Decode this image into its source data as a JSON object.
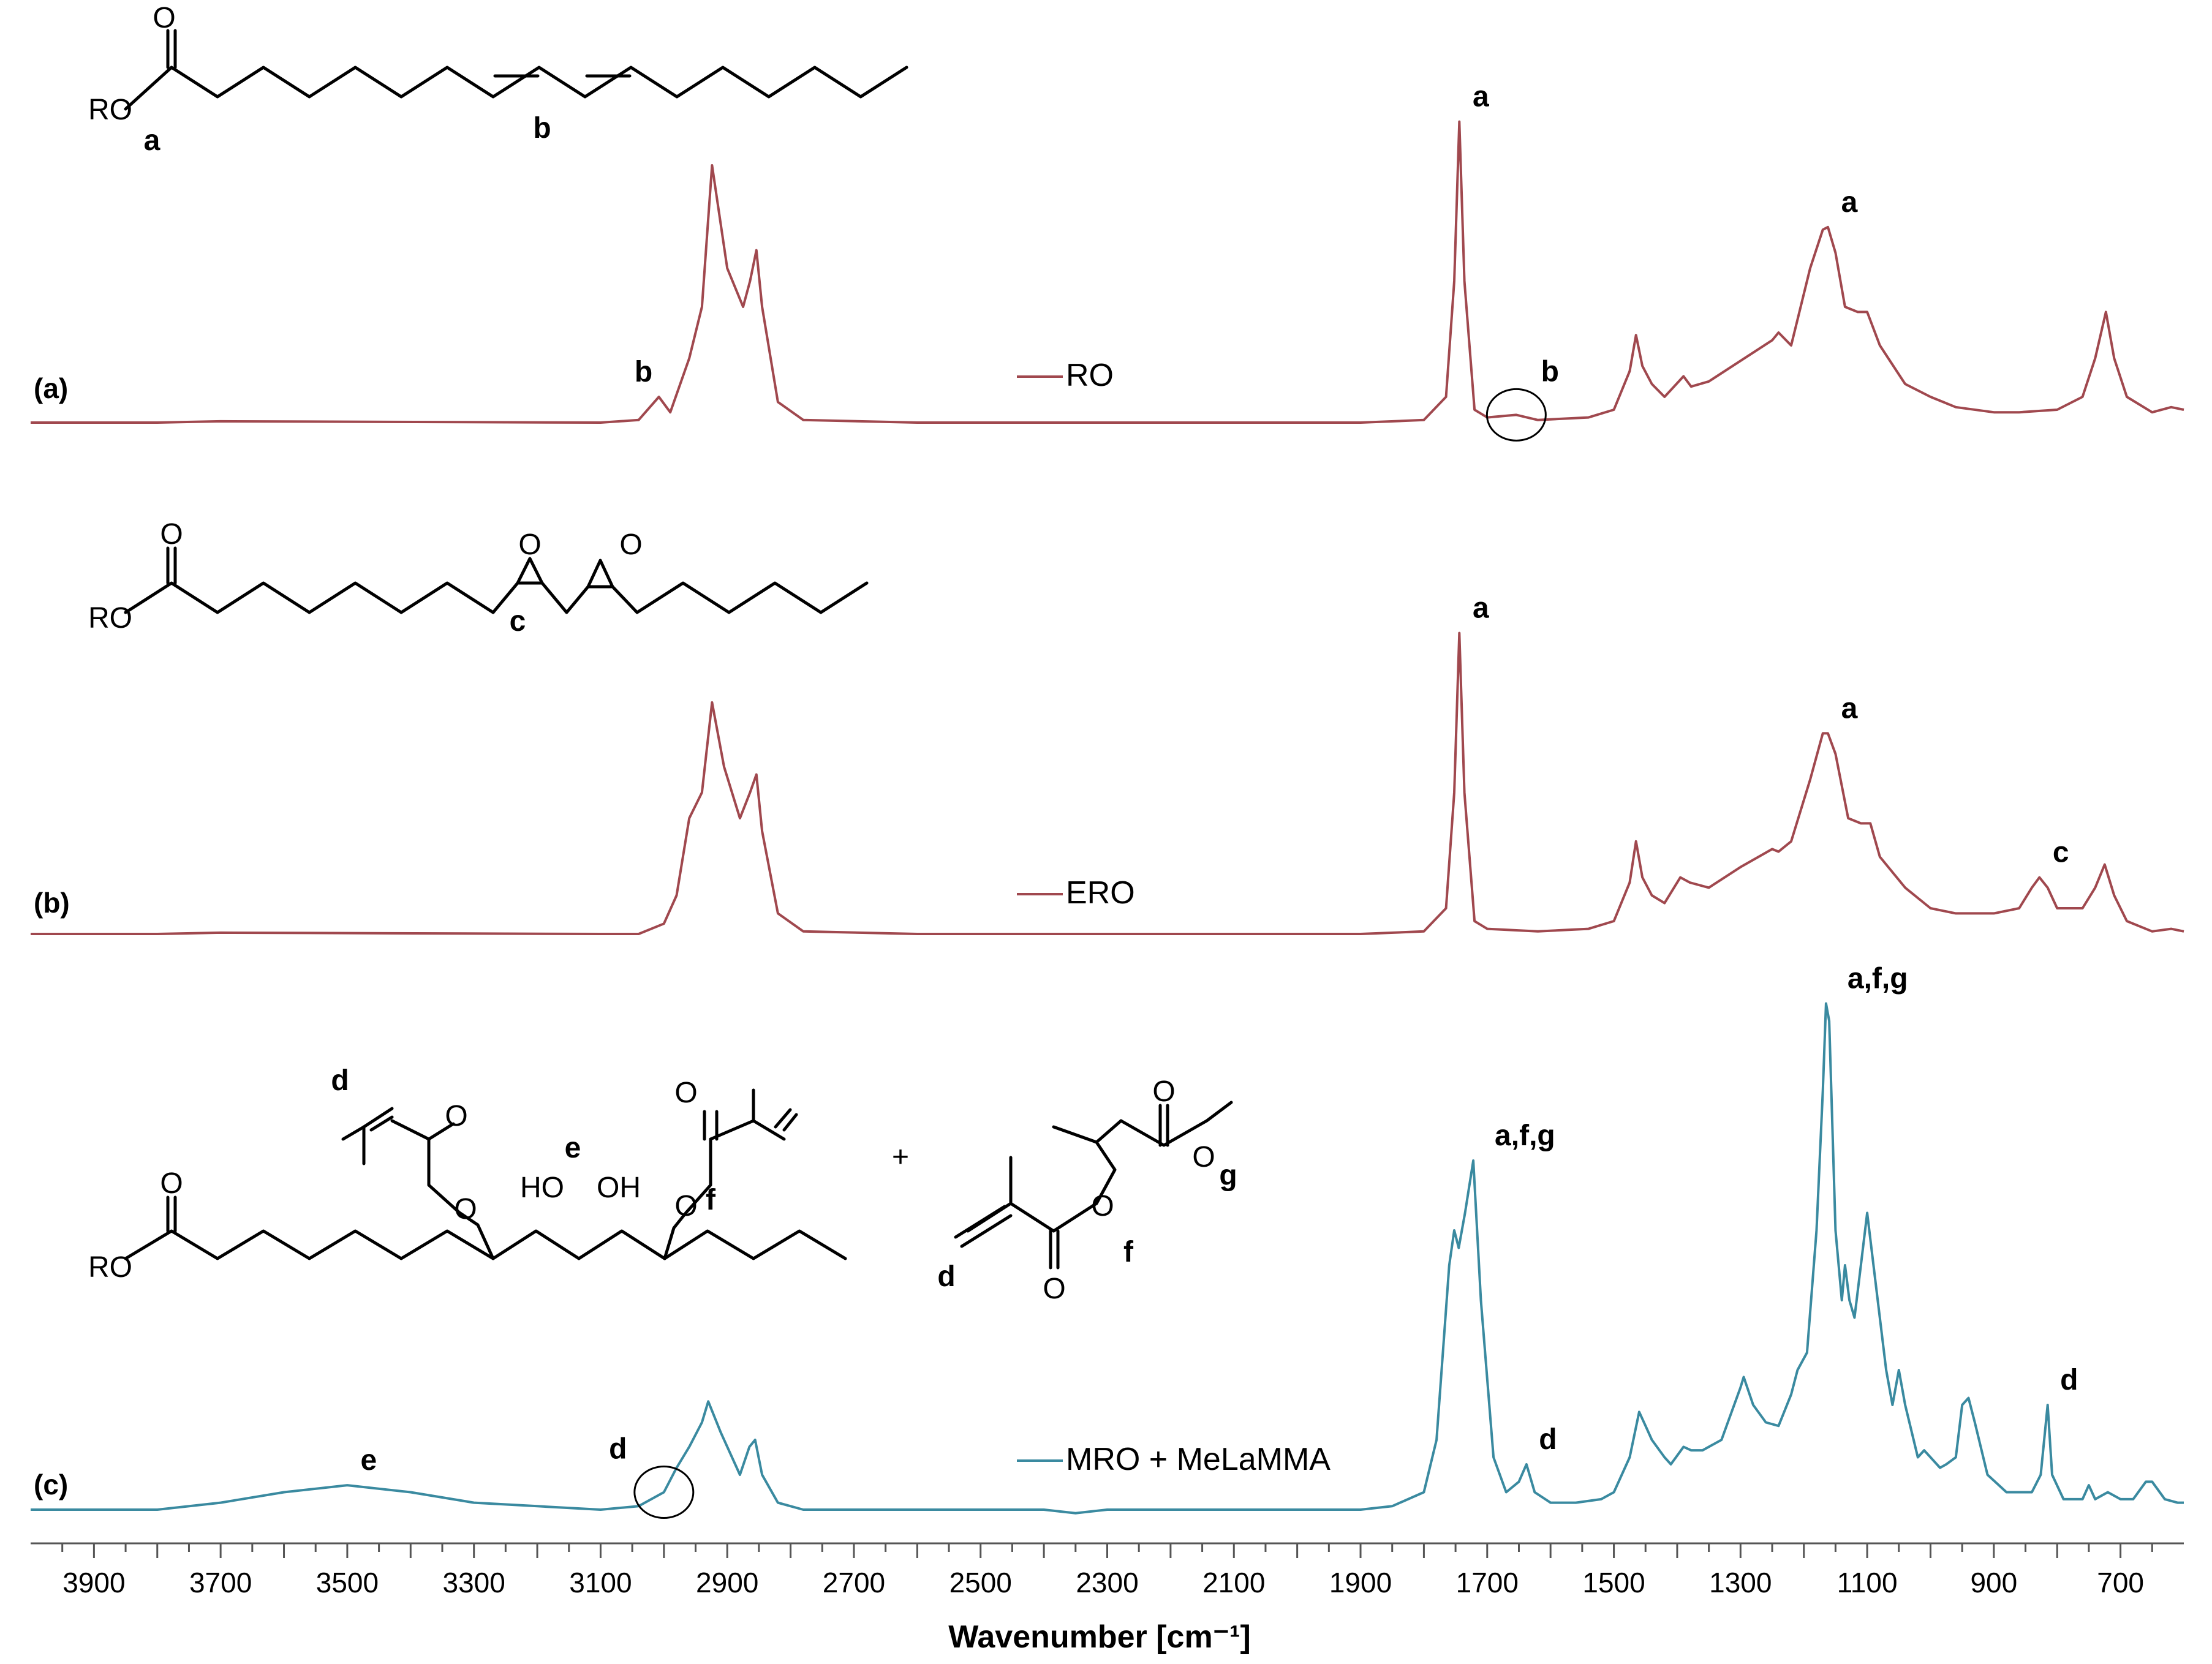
{
  "chart_data": {
    "type": "line",
    "title": "",
    "xlabel": "Wavenumber [cm⁻¹]",
    "ylabel": "",
    "xlim": [
      4000,
      600
    ],
    "x_reversed": true,
    "x_ticks": [
      3900,
      3700,
      3500,
      3300,
      3100,
      2900,
      2700,
      2500,
      2300,
      2100,
      1900,
      1700,
      1500,
      1300,
      1100,
      900,
      700
    ],
    "grid": false,
    "legend": "inline",
    "series": [
      {
        "name": "RO",
        "panel": "(a)",
        "color": "#a0484e",
        "points": [
          [
            4000,
            0.0
          ],
          [
            3800,
            0.0
          ],
          [
            3700,
            0.005
          ],
          [
            3100,
            0.0
          ],
          [
            3040,
            0.01
          ],
          [
            3008,
            0.1
          ],
          [
            2990,
            0.04
          ],
          [
            2960,
            0.25
          ],
          [
            2940,
            0.45
          ],
          [
            2924,
            1.0
          ],
          [
            2900,
            0.6
          ],
          [
            2875,
            0.45
          ],
          [
            2864,
            0.55
          ],
          [
            2854,
            0.67
          ],
          [
            2845,
            0.45
          ],
          [
            2820,
            0.08
          ],
          [
            2780,
            0.01
          ],
          [
            2600,
            0.0
          ],
          [
            1900,
            0.0
          ],
          [
            1800,
            0.01
          ],
          [
            1765,
            0.1
          ],
          [
            1752,
            0.55
          ],
          [
            1744,
            1.17
          ],
          [
            1736,
            0.55
          ],
          [
            1720,
            0.05
          ],
          [
            1700,
            0.02
          ],
          [
            1654,
            0.03
          ],
          [
            1620,
            0.01
          ],
          [
            1540,
            0.02
          ],
          [
            1500,
            0.05
          ],
          [
            1475,
            0.2
          ],
          [
            1465,
            0.34
          ],
          [
            1455,
            0.22
          ],
          [
            1440,
            0.15
          ],
          [
            1420,
            0.1
          ],
          [
            1390,
            0.18
          ],
          [
            1378,
            0.14
          ],
          [
            1350,
            0.16
          ],
          [
            1300,
            0.24
          ],
          [
            1250,
            0.32
          ],
          [
            1240,
            0.35
          ],
          [
            1220,
            0.3
          ],
          [
            1190,
            0.6
          ],
          [
            1170,
            0.75
          ],
          [
            1162,
            0.76
          ],
          [
            1150,
            0.66
          ],
          [
            1135,
            0.45
          ],
          [
            1115,
            0.43
          ],
          [
            1100,
            0.43
          ],
          [
            1080,
            0.3
          ],
          [
            1040,
            0.15
          ],
          [
            1000,
            0.1
          ],
          [
            960,
            0.06
          ],
          [
            900,
            0.04
          ],
          [
            860,
            0.04
          ],
          [
            800,
            0.05
          ],
          [
            760,
            0.1
          ],
          [
            740,
            0.25
          ],
          [
            723,
            0.43
          ],
          [
            710,
            0.25
          ],
          [
            690,
            0.1
          ],
          [
            650,
            0.04
          ],
          [
            620,
            0.06
          ],
          [
            600,
            0.05
          ]
        ]
      },
      {
        "name": "ERO",
        "panel": "(b)",
        "color": "#a0484e",
        "points": [
          [
            4000,
            0.0
          ],
          [
            3800,
            0.0
          ],
          [
            3700,
            0.005
          ],
          [
            3100,
            0.0
          ],
          [
            3040,
            0.0
          ],
          [
            3000,
            0.04
          ],
          [
            2980,
            0.15
          ],
          [
            2960,
            0.45
          ],
          [
            2940,
            0.55
          ],
          [
            2924,
            0.9
          ],
          [
            2905,
            0.65
          ],
          [
            2880,
            0.45
          ],
          [
            2864,
            0.55
          ],
          [
            2854,
            0.62
          ],
          [
            2845,
            0.4
          ],
          [
            2820,
            0.08
          ],
          [
            2780,
            0.01
          ],
          [
            2600,
            0.0
          ],
          [
            1900,
            0.0
          ],
          [
            1800,
            0.01
          ],
          [
            1765,
            0.1
          ],
          [
            1752,
            0.55
          ],
          [
            1744,
            1.17
          ],
          [
            1736,
            0.55
          ],
          [
            1720,
            0.05
          ],
          [
            1700,
            0.02
          ],
          [
            1620,
            0.01
          ],
          [
            1540,
            0.02
          ],
          [
            1500,
            0.05
          ],
          [
            1475,
            0.2
          ],
          [
            1465,
            0.36
          ],
          [
            1455,
            0.22
          ],
          [
            1440,
            0.15
          ],
          [
            1420,
            0.12
          ],
          [
            1395,
            0.22
          ],
          [
            1380,
            0.2
          ],
          [
            1350,
            0.18
          ],
          [
            1300,
            0.26
          ],
          [
            1250,
            0.33
          ],
          [
            1240,
            0.32
          ],
          [
            1220,
            0.36
          ],
          [
            1190,
            0.6
          ],
          [
            1170,
            0.78
          ],
          [
            1162,
            0.78
          ],
          [
            1150,
            0.7
          ],
          [
            1130,
            0.45
          ],
          [
            1110,
            0.43
          ],
          [
            1095,
            0.43
          ],
          [
            1080,
            0.3
          ],
          [
            1040,
            0.18
          ],
          [
            1000,
            0.1
          ],
          [
            960,
            0.08
          ],
          [
            900,
            0.08
          ],
          [
            860,
            0.1
          ],
          [
            840,
            0.18
          ],
          [
            828,
            0.22
          ],
          [
            815,
            0.18
          ],
          [
            800,
            0.1
          ],
          [
            760,
            0.1
          ],
          [
            740,
            0.18
          ],
          [
            725,
            0.27
          ],
          [
            710,
            0.15
          ],
          [
            690,
            0.05
          ],
          [
            650,
            0.01
          ],
          [
            620,
            0.02
          ],
          [
            600,
            0.01
          ]
        ]
      },
      {
        "name": "MRO + MeLaMMA",
        "panel": "(c)",
        "color": "#3a8aa0",
        "points": [
          [
            4000,
            0.0
          ],
          [
            3800,
            0.0
          ],
          [
            3700,
            0.02
          ],
          [
            3600,
            0.05
          ],
          [
            3500,
            0.07
          ],
          [
            3400,
            0.05
          ],
          [
            3300,
            0.02
          ],
          [
            3200,
            0.01
          ],
          [
            3100,
            0.0
          ],
          [
            3040,
            0.01
          ],
          [
            3000,
            0.05
          ],
          [
            2980,
            0.12
          ],
          [
            2960,
            0.18
          ],
          [
            2940,
            0.25
          ],
          [
            2930,
            0.31
          ],
          [
            2910,
            0.22
          ],
          [
            2880,
            0.1
          ],
          [
            2865,
            0.18
          ],
          [
            2856,
            0.2
          ],
          [
            2845,
            0.1
          ],
          [
            2820,
            0.02
          ],
          [
            2780,
            0.0
          ],
          [
            2400,
            0.0
          ],
          [
            2350,
            -0.01
          ],
          [
            2300,
            0.0
          ],
          [
            1900,
            0.0
          ],
          [
            1850,
            0.01
          ],
          [
            1800,
            0.05
          ],
          [
            1780,
            0.2
          ],
          [
            1760,
            0.7
          ],
          [
            1752,
            0.8
          ],
          [
            1745,
            0.75
          ],
          [
            1735,
            0.85
          ],
          [
            1722,
            1.0
          ],
          [
            1710,
            0.6
          ],
          [
            1690,
            0.15
          ],
          [
            1670,
            0.05
          ],
          [
            1650,
            0.08
          ],
          [
            1638,
            0.13
          ],
          [
            1625,
            0.05
          ],
          [
            1600,
            0.02
          ],
          [
            1560,
            0.02
          ],
          [
            1520,
            0.03
          ],
          [
            1500,
            0.05
          ],
          [
            1475,
            0.15
          ],
          [
            1460,
            0.28
          ],
          [
            1450,
            0.24
          ],
          [
            1440,
            0.2
          ],
          [
            1420,
            0.15
          ],
          [
            1410,
            0.13
          ],
          [
            1390,
            0.18
          ],
          [
            1378,
            0.17
          ],
          [
            1360,
            0.17
          ],
          [
            1330,
            0.2
          ],
          [
            1320,
            0.25
          ],
          [
            1300,
            0.35
          ],
          [
            1295,
            0.38
          ],
          [
            1280,
            0.3
          ],
          [
            1260,
            0.25
          ],
          [
            1240,
            0.24
          ],
          [
            1220,
            0.33
          ],
          [
            1210,
            0.4
          ],
          [
            1195,
            0.45
          ],
          [
            1180,
            0.8
          ],
          [
            1170,
            1.2
          ],
          [
            1165,
            1.45
          ],
          [
            1160,
            1.4
          ],
          [
            1150,
            0.8
          ],
          [
            1140,
            0.6
          ],
          [
            1135,
            0.7
          ],
          [
            1128,
            0.6
          ],
          [
            1120,
            0.55
          ],
          [
            1110,
            0.7
          ],
          [
            1100,
            0.85
          ],
          [
            1090,
            0.7
          ],
          [
            1070,
            0.4
          ],
          [
            1060,
            0.3
          ],
          [
            1050,
            0.4
          ],
          [
            1040,
            0.3
          ],
          [
            1020,
            0.15
          ],
          [
            1010,
            0.17
          ],
          [
            1000,
            0.15
          ],
          [
            985,
            0.12
          ],
          [
            975,
            0.13
          ],
          [
            960,
            0.15
          ],
          [
            950,
            0.3
          ],
          [
            940,
            0.32
          ],
          [
            930,
            0.25
          ],
          [
            910,
            0.1
          ],
          [
            880,
            0.05
          ],
          [
            860,
            0.05
          ],
          [
            840,
            0.05
          ],
          [
            826,
            0.1
          ],
          [
            815,
            0.3
          ],
          [
            808,
            0.1
          ],
          [
            790,
            0.03
          ],
          [
            760,
            0.03
          ],
          [
            750,
            0.07
          ],
          [
            740,
            0.03
          ],
          [
            720,
            0.05
          ],
          [
            700,
            0.03
          ],
          [
            680,
            0.03
          ],
          [
            660,
            0.08
          ],
          [
            650,
            0.08
          ],
          [
            630,
            0.03
          ],
          [
            610,
            0.02
          ],
          [
            600,
            0.02
          ]
        ]
      }
    ],
    "annotations": [
      {
        "panel": "(a)",
        "text": "b",
        "x": 3008,
        "near": "peak"
      },
      {
        "panel": "(a)",
        "text": "a",
        "x": 1744,
        "near": "peak"
      },
      {
        "panel": "(a)",
        "text": "b",
        "x": 1654,
        "near": "circle"
      },
      {
        "panel": "(a)",
        "text": "a",
        "x": 1162,
        "near": "peak"
      },
      {
        "panel": "(b)",
        "text": "a",
        "x": 1744,
        "near": "peak"
      },
      {
        "panel": "(b)",
        "text": "a",
        "x": 1162,
        "near": "peak"
      },
      {
        "panel": "(b)",
        "text": "c",
        "x": 828,
        "near": "peak"
      },
      {
        "panel": "(c)",
        "text": "e",
        "x": 3500,
        "near": "peak"
      },
      {
        "panel": "(c)",
        "text": "d",
        "x": 3000,
        "near": "circle"
      },
      {
        "panel": "(c)",
        "text": "a,f,g",
        "x": 1722,
        "near": "peak"
      },
      {
        "panel": "(c)",
        "text": "d",
        "x": 1638,
        "near": "peak"
      },
      {
        "panel": "(c)",
        "text": "a,f,g",
        "x": 1165,
        "near": "peak"
      },
      {
        "panel": "(c)",
        "text": "d",
        "x": 815,
        "near": "peak"
      }
    ]
  },
  "panel_labels": [
    "(a)",
    "(b)",
    "(c)"
  ],
  "structures": {
    "ro": {
      "ro_label": "RO",
      "o_label": "O",
      "site_a": "a",
      "site_b": "b"
    },
    "ero": {
      "ro_label": "RO",
      "o_label": "O",
      "site_c": "c"
    },
    "mro": {
      "ro_label": "RO",
      "o_label": "O",
      "ho1": "HO",
      "oh2": "OH",
      "site_d": "d",
      "site_e": "e",
      "site_f": "f"
    },
    "plus": "+",
    "melamma": {
      "o_label": "O",
      "site_d": "d",
      "site_f": "f",
      "site_g": "g"
    }
  }
}
